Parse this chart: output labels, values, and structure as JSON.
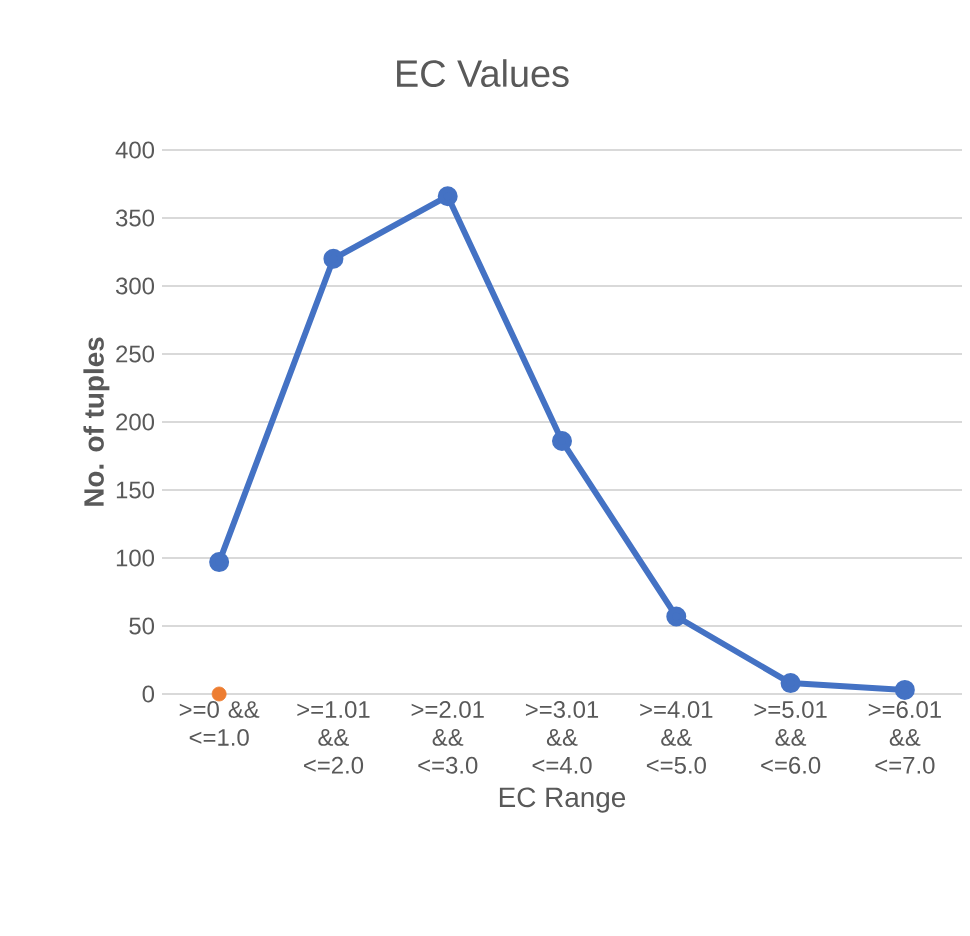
{
  "chart_data": {
    "type": "line",
    "title": "EC Values",
    "xlabel": "EC Range",
    "ylabel": "No. of tuples",
    "categories": [
      ">=0 && <=1.0",
      ">=1.01 && <=2.0",
      ">=2.01 && <=3.0",
      ">=3.01 && <=4.0",
      ">=4.01 && <=5.0",
      ">=5.01 && <=6.0",
      ">=6.01 && <=7.0"
    ],
    "series": [
      {
        "color": "#4472c4",
        "values": [
          97,
          320,
          366,
          186,
          57,
          8,
          3
        ]
      },
      {
        "type": "scatter",
        "color": "#ed7d31",
        "values": [
          0,
          null,
          null,
          null,
          null,
          null,
          null
        ]
      }
    ],
    "ylim": [
      0,
      400
    ],
    "yticks": [
      0,
      50,
      100,
      150,
      200,
      250,
      300,
      350,
      400
    ],
    "grid": "y",
    "marker": "circle"
  }
}
